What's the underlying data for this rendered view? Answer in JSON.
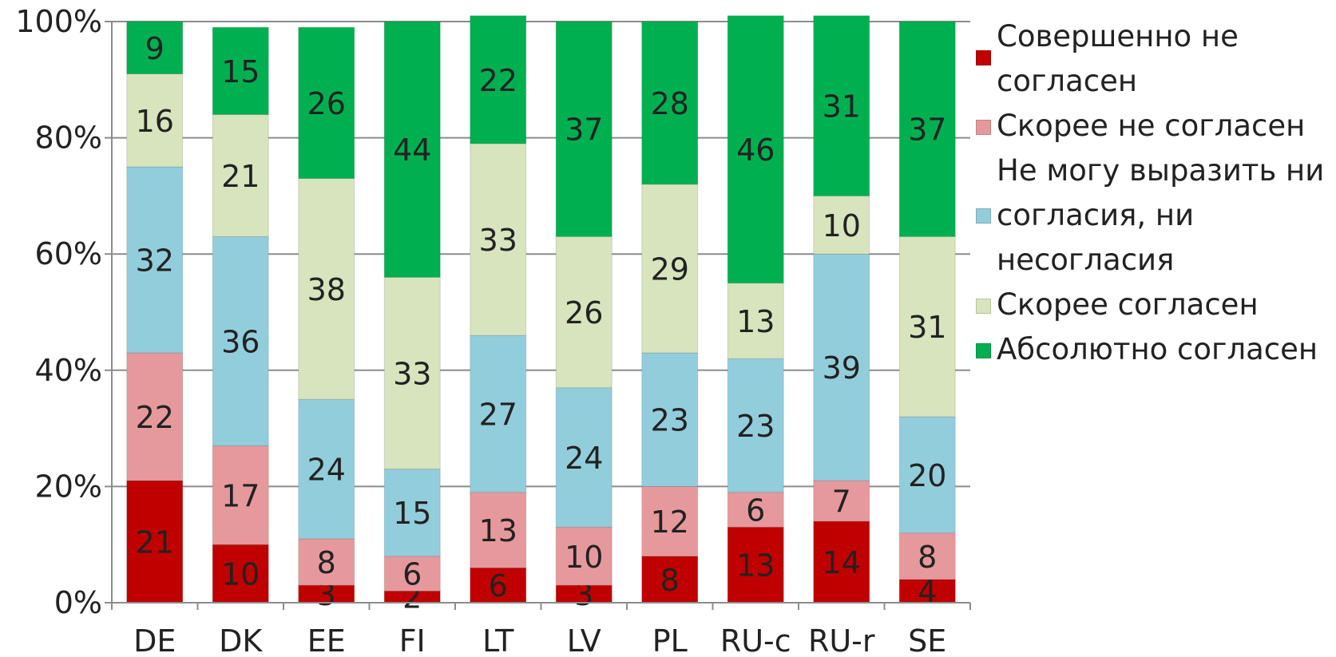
{
  "chart_data": {
    "type": "bar",
    "stacked": true,
    "percent_stacked": true,
    "categories": [
      "DE",
      "DK",
      "EE",
      "FI",
      "LT",
      "LV",
      "PL",
      "RU-c",
      "RU-r",
      "SE"
    ],
    "y_ticks": [
      "0%",
      "20%",
      "40%",
      "60%",
      "80%",
      "100%"
    ],
    "ylim": [
      0,
      100
    ],
    "grid": true,
    "legend_position": "right",
    "data_labels": true,
    "series": [
      {
        "name": "Совершенно не согласен",
        "color": "#c00000",
        "values": [
          21,
          10,
          3,
          2,
          6,
          3,
          8,
          13,
          14,
          4
        ]
      },
      {
        "name": "Скорее не согласен",
        "color": "#e6999c",
        "values": [
          22,
          17,
          8,
          6,
          13,
          10,
          12,
          6,
          7,
          8
        ]
      },
      {
        "name": "Не могу выразить ни согласия, ни несогласия",
        "color": "#92cddc",
        "values": [
          32,
          36,
          24,
          15,
          27,
          24,
          23,
          23,
          39,
          20
        ]
      },
      {
        "name": "Скорее согласен",
        "color": "#d7e4bd",
        "values": [
          16,
          21,
          38,
          33,
          33,
          26,
          29,
          13,
          10,
          31
        ]
      },
      {
        "name": "Абсолютно согласен",
        "color": "#00b050",
        "values": [
          9,
          15,
          26,
          44,
          22,
          37,
          28,
          46,
          31,
          37
        ]
      }
    ]
  },
  "legend": {
    "items": [
      {
        "label": "Совершенно не согласен",
        "color": "#c00000"
      },
      {
        "label": "Скорее не согласен",
        "color": "#e6999c"
      },
      {
        "label": "Не могу выразить ни согласия, ни несогласия",
        "color": "#92cddc"
      },
      {
        "label": "Скорее согласен",
        "color": "#d7e4bd"
      },
      {
        "label": "Абсолютно согласен",
        "color": "#00b050"
      }
    ]
  }
}
